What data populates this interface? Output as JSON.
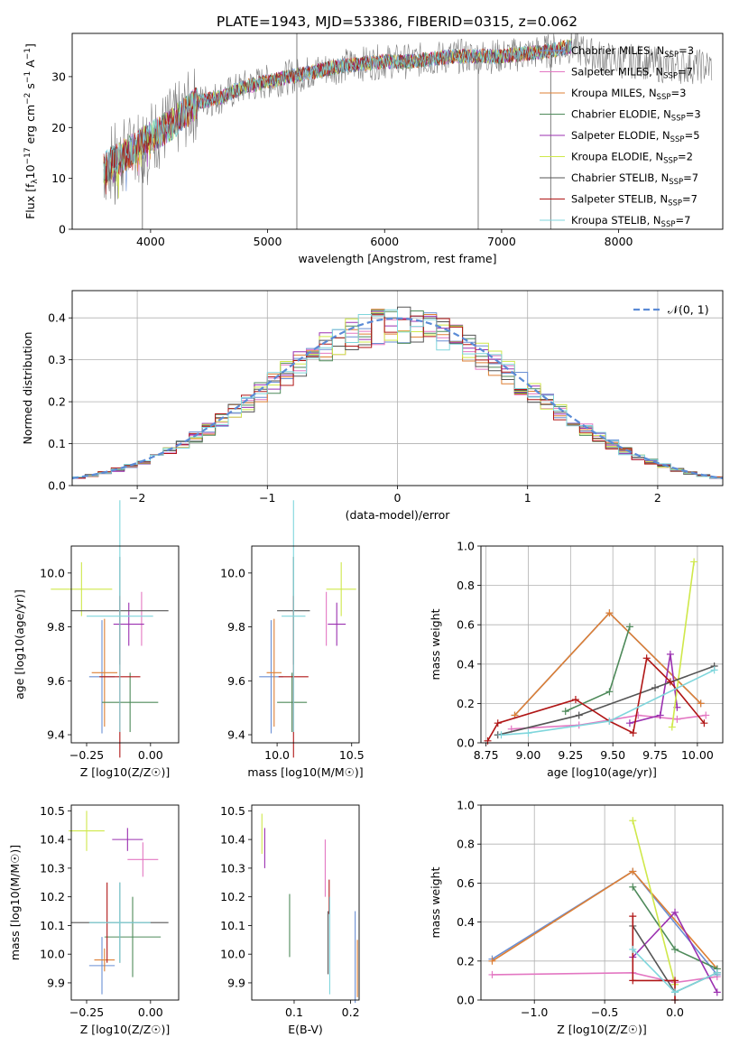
{
  "figure_title": "PLATE=1943, MJD=53386, FIBERID=0315, z=0.062",
  "colors": {
    "Chabrier MILES": "#6a8fd4",
    "Salpeter MILES": "#e377c2",
    "Kroupa MILES": "#dd7f34",
    "Chabrier ELODIE": "#4e8a5a",
    "Salpeter ELODIE": "#9b30b0",
    "Kroupa ELODIE": "#cfe84a",
    "Chabrier STELIB": "#555555",
    "Salpeter STELIB": "#b01616",
    "Kroupa STELIB": "#7fd6dc",
    "gauss": "#5b8bd6",
    "data": "#7f7f7f"
  },
  "chart_data": [
    {
      "id": "spectrum",
      "type": "line",
      "title": "PLATE=1943, MJD=53386, FIBERID=0315, z=0.062",
      "xlabel": "wavelength [Angstrom, rest frame]",
      "ylabel_parts": [
        "Flux [f",
        "λ",
        "10",
        "−17",
        " erg cm",
        "−2",
        " s",
        "−1",
        " A",
        "−1",
        "]"
      ],
      "xlim": [
        3330,
        8890
      ],
      "ylim": [
        0,
        38.5
      ],
      "xticks": [
        4000,
        5000,
        6000,
        7000,
        8000
      ],
      "yticks": [
        0,
        10,
        20,
        30
      ],
      "legend_position": "upper-right",
      "legend": [
        {
          "name": "Chabrier MILES",
          "nssp": "3"
        },
        {
          "name": "Salpeter MILES",
          "nssp": "7"
        },
        {
          "name": "Kroupa MILES",
          "nssp": "3"
        },
        {
          "name": "Chabrier ELODIE",
          "nssp": "3"
        },
        {
          "name": "Salpeter ELODIE",
          "nssp": "5"
        },
        {
          "name": "Kroupa ELODIE",
          "nssp": "2"
        },
        {
          "name": "Chabrier STELIB",
          "nssp": "7"
        },
        {
          "name": "Salpeter STELIB",
          "nssp": "7"
        },
        {
          "name": "Kroupa STELIB",
          "nssp": "7"
        }
      ],
      "continuum": {
        "x": [
          3600,
          3800,
          4000,
          4200,
          4400,
          4600,
          4800,
          5000,
          5200,
          5400,
          5600,
          5800,
          6000,
          6200,
          6400,
          6600,
          6800,
          7000,
          7200,
          7400,
          7600,
          7800,
          8000,
          8200,
          8400,
          8600,
          8800
        ],
        "y": [
          12,
          15,
          18,
          21,
          25,
          26,
          28,
          29,
          30,
          31,
          32,
          32.5,
          33,
          33,
          33.5,
          34,
          34,
          34,
          34.5,
          35,
          36,
          34,
          33,
          33,
          32,
          32,
          32
        ]
      },
      "spikes": [
        {
          "x": 5250,
          "y_low": 0,
          "y_high": 38.5
        },
        {
          "x": 6800,
          "y_low": 0,
          "y_high": 34
        },
        {
          "x": 7420,
          "y_low": 0,
          "y_high": 35
        },
        {
          "x": 3930,
          "y_low": 0,
          "y_high": 12
        }
      ]
    },
    {
      "id": "residuals",
      "type": "line",
      "xlabel": "(data-model)/error",
      "ylabel": "Normed distribution",
      "xlim": [
        -2.5,
        2.5
      ],
      "ylim": [
        0,
        0.465
      ],
      "xticks": [
        -2,
        -1,
        0,
        1,
        2
      ],
      "yticks": [
        0.0,
        0.1,
        0.2,
        0.3,
        0.4
      ],
      "grid": true,
      "legend_position": "upper-right",
      "legend": [
        {
          "name": "𝒩(0, 1)"
        }
      ],
      "bin_width": 0.1
    },
    {
      "id": "age-vs-z",
      "type": "scatter",
      "xlabel": "Z [log10(Z/Z☉)]",
      "ylabel": "age  [log10(age/yr)]",
      "xlim": [
        -0.31,
        0.11
      ],
      "ylim": [
        9.37,
        10.1
      ],
      "xticks": [
        -0.25,
        0.0
      ],
      "yticks": [
        9.4,
        9.6,
        9.8,
        10.0
      ],
      "points": [
        {
          "series": "Chabrier MILES",
          "x": -0.19,
          "y": 9.615,
          "xerr": 0.05,
          "yerr": 0.21
        },
        {
          "series": "Salpeter MILES",
          "x": -0.035,
          "y": 9.83,
          "xerr": 0.0,
          "yerr": 0.1
        },
        {
          "series": "Kroupa MILES",
          "x": -0.18,
          "y": 9.63,
          "xerr": 0.05,
          "yerr": 0.2
        },
        {
          "series": "Chabrier ELODIE",
          "x": -0.08,
          "y": 9.52,
          "xerr": 0.11,
          "yerr": 0.11
        },
        {
          "series": "Salpeter ELODIE",
          "x": -0.085,
          "y": 9.81,
          "xerr": 0.06,
          "yerr": 0.08
        },
        {
          "series": "Kroupa ELODIE",
          "x": -0.27,
          "y": 9.94,
          "xerr": 0.12,
          "yerr": 0.1
        },
        {
          "series": "Chabrier STELIB",
          "x": -0.12,
          "y": 9.86,
          "xerr": 0.19,
          "yerr": 0.2
        },
        {
          "series": "Salpeter STELIB",
          "x": -0.12,
          "y": 9.615,
          "xerr": 0.08,
          "yerr": 0.3
        },
        {
          "series": "Kroupa STELIB",
          "x": -0.12,
          "y": 9.84,
          "xerr": 0.13,
          "yerr": 0.43
        }
      ]
    },
    {
      "id": "age-vs-mass",
      "type": "scatter",
      "xlabel": "mass [log10(M/M☉)]",
      "xlim": [
        9.83,
        10.55
      ],
      "ylim": [
        9.37,
        10.1
      ],
      "xticks": [
        10.0,
        10.5
      ],
      "yticks": [
        9.4,
        9.6,
        9.8,
        10.0
      ],
      "points": [
        {
          "series": "Chabrier MILES",
          "x": 9.96,
          "y": 9.615,
          "xerr": 0.08,
          "yerr": 0.21
        },
        {
          "series": "Salpeter MILES",
          "x": 10.33,
          "y": 9.83,
          "xerr": 0.0,
          "yerr": 0.1
        },
        {
          "series": "Kroupa MILES",
          "x": 9.98,
          "y": 9.63,
          "xerr": 0.05,
          "yerr": 0.2
        },
        {
          "series": "Chabrier ELODIE",
          "x": 10.1,
          "y": 9.52,
          "xerr": 0.1,
          "yerr": 0.11
        },
        {
          "series": "Salpeter ELODIE",
          "x": 10.4,
          "y": 9.81,
          "xerr": 0.06,
          "yerr": 0.08
        },
        {
          "series": "Kroupa ELODIE",
          "x": 10.43,
          "y": 9.94,
          "xerr": 0.1,
          "yerr": 0.1
        },
        {
          "series": "Chabrier STELIB",
          "x": 10.11,
          "y": 9.86,
          "xerr": 0.11,
          "yerr": 0.2
        },
        {
          "series": "Salpeter STELIB",
          "x": 10.11,
          "y": 9.615,
          "xerr": 0.1,
          "yerr": 0.3
        },
        {
          "series": "Kroupa STELIB",
          "x": 10.11,
          "y": 9.84,
          "xerr": 0.08,
          "yerr": 0.43
        }
      ]
    },
    {
      "id": "mass-weight-vs-age",
      "type": "line",
      "xlabel": "age  [log10(age/yr)]",
      "ylabel": "mass weight",
      "xlim": [
        8.72,
        10.15
      ],
      "ylim": [
        0,
        1.0
      ],
      "xticks": [
        8.75,
        9.0,
        9.25,
        9.5,
        9.75,
        10.0
      ],
      "xticklabels": [
        "8.75",
        "9.00",
        "9.25",
        "9.50",
        "9.75",
        "10.00"
      ],
      "yticks": [
        0.0,
        0.2,
        0.4,
        0.6,
        0.8,
        1.0
      ],
      "grid": true,
      "series": [
        {
          "name": "Chabrier MILES",
          "x": [
            8.92,
            9.48,
            10.02
          ],
          "y": [
            0.14,
            0.66,
            0.2
          ]
        },
        {
          "name": "Salpeter MILES",
          "x": [
            8.9,
            9.3,
            9.65,
            9.88,
            10.05
          ],
          "y": [
            0.07,
            0.09,
            0.14,
            0.12,
            0.14
          ]
        },
        {
          "name": "Kroupa MILES",
          "x": [
            8.92,
            9.48,
            10.02
          ],
          "y": [
            0.14,
            0.66,
            0.2
          ]
        },
        {
          "name": "Chabrier ELODIE",
          "x": [
            9.22,
            9.48,
            9.6
          ],
          "y": [
            0.16,
            0.26,
            0.59
          ]
        },
        {
          "name": "Salpeter ELODIE",
          "x": [
            9.6,
            9.78,
            9.84,
            9.88
          ],
          "y": [
            0.1,
            0.14,
            0.45,
            0.18
          ]
        },
        {
          "name": "Kroupa ELODIE",
          "x": [
            9.85,
            9.98
          ],
          "y": [
            0.08,
            0.92
          ]
        },
        {
          "name": "Chabrier STELIB",
          "x": [
            8.82,
            9.3,
            9.75,
            10.1
          ],
          "y": [
            0.04,
            0.14,
            0.28,
            0.39
          ]
        },
        {
          "name": "Salpeter STELIB",
          "x": [
            8.76,
            8.82,
            9.28,
            9.48,
            9.62,
            9.7,
            9.84,
            10.04
          ],
          "y": [
            0.01,
            0.1,
            0.22,
            0.11,
            0.05,
            0.43,
            0.31,
            0.1
          ]
        },
        {
          "name": "Kroupa STELIB",
          "x": [
            8.84,
            9.0,
            9.48,
            10.1
          ],
          "y": [
            0.04,
            0.05,
            0.11,
            0.37
          ]
        }
      ]
    },
    {
      "id": "mass-vs-z",
      "type": "scatter",
      "xlabel": "Z [log10(Z/Z☉)]",
      "ylabel": "mass [log10(M/M☉)]",
      "xlim": [
        -0.31,
        0.11
      ],
      "ylim": [
        9.84,
        10.52
      ],
      "xticks": [
        -0.25,
        0.0
      ],
      "yticks": [
        9.9,
        10.0,
        10.1,
        10.2,
        10.3,
        10.4,
        10.5
      ],
      "points": [
        {
          "series": "Chabrier MILES",
          "x": -0.19,
          "y": 9.96,
          "xerr": 0.05,
          "yerr": 0.1
        },
        {
          "series": "Salpeter MILES",
          "x": -0.03,
          "y": 10.33,
          "xerr": 0.06,
          "yerr": 0.06
        },
        {
          "series": "Kroupa MILES",
          "x": -0.18,
          "y": 9.98,
          "xerr": 0.04,
          "yerr": 0.04
        },
        {
          "series": "Chabrier ELODIE",
          "x": -0.07,
          "y": 10.06,
          "xerr": 0.11,
          "yerr": 0.14
        },
        {
          "series": "Salpeter ELODIE",
          "x": -0.09,
          "y": 10.4,
          "xerr": 0.06,
          "yerr": 0.04
        },
        {
          "series": "Kroupa ELODIE",
          "x": -0.25,
          "y": 10.43,
          "xerr": 0.07,
          "yerr": 0.07
        },
        {
          "series": "Chabrier STELIB",
          "x": -0.12,
          "y": 10.11,
          "xerr": 0.19,
          "yerr": 0.14
        },
        {
          "series": "Salpeter STELIB",
          "x": -0.17,
          "y": 10.11,
          "xerr": 0.0,
          "yerr": 0.14
        },
        {
          "series": "Kroupa STELIB",
          "x": -0.12,
          "y": 10.11,
          "xerr": 0.12,
          "yerr": 0.14
        }
      ]
    },
    {
      "id": "mass-vs-ebv",
      "type": "scatter",
      "xlabel": "E(B-V)",
      "xlim": [
        0.025,
        0.215
      ],
      "ylim": [
        9.84,
        10.52
      ],
      "xticks": [
        0.1,
        0.2
      ],
      "yticks": [
        9.9,
        10.0,
        10.1,
        10.2,
        10.3,
        10.4,
        10.5
      ],
      "points": [
        {
          "series": "Chabrier MILES",
          "x": 0.208,
          "y": 9.99,
          "yerr": 0.16
        },
        {
          "series": "Salpeter MILES",
          "x": 0.155,
          "y": 10.3,
          "yerr": 0.1
        },
        {
          "series": "Kroupa MILES",
          "x": 0.212,
          "y": 9.95,
          "yerr": 0.1
        },
        {
          "series": "Chabrier ELODIE",
          "x": 0.092,
          "y": 10.1,
          "yerr": 0.11
        },
        {
          "series": "Salpeter ELODIE",
          "x": 0.048,
          "y": 10.37,
          "yerr": 0.07
        },
        {
          "series": "Kroupa ELODIE",
          "x": 0.043,
          "y": 10.42,
          "yerr": 0.07
        },
        {
          "series": "Chabrier STELIB",
          "x": 0.16,
          "y": 10.04,
          "yerr": 0.11
        },
        {
          "series": "Salpeter STELIB",
          "x": 0.162,
          "y": 10.2,
          "yerr": 0.06
        },
        {
          "series": "Kroupa STELIB",
          "x": 0.163,
          "y": 10.03,
          "yerr": 0.17
        }
      ]
    },
    {
      "id": "mass-weight-vs-z",
      "type": "line",
      "xlabel": "Z [log10(Z/Z☉)]",
      "ylabel": "mass weight",
      "xlim": [
        -1.38,
        0.34
      ],
      "ylim": [
        0,
        1.0
      ],
      "xticks": [
        -1.0,
        -0.5,
        0.0
      ],
      "xticklabels": [
        "−1.0",
        "−0.5",
        "0.0"
      ],
      "yticks": [
        0.0,
        0.2,
        0.4,
        0.6,
        0.8,
        1.0
      ],
      "grid": true,
      "series": [
        {
          "name": "Chabrier MILES",
          "x": [
            -1.3,
            -0.3,
            0.3
          ],
          "y": [
            0.21,
            0.66,
            0.13
          ]
        },
        {
          "name": "Salpeter MILES",
          "x": [
            -1.3,
            -0.3,
            0.0,
            0.3
          ],
          "y": [
            0.13,
            0.14,
            0.09,
            0.12
          ]
        },
        {
          "name": "Kroupa MILES",
          "x": [
            -1.3,
            -0.3,
            0.3
          ],
          "y": [
            0.2,
            0.66,
            0.16
          ]
        },
        {
          "name": "Chabrier ELODIE",
          "x": [
            -0.3,
            0.0,
            0.3
          ],
          "y": [
            0.58,
            0.26,
            0.16
          ]
        },
        {
          "name": "Salpeter ELODIE",
          "x": [
            -0.3,
            0.0,
            0.3
          ],
          "y": [
            0.22,
            0.45,
            0.04
          ]
        },
        {
          "name": "Kroupa ELODIE",
          "x": [
            -0.3,
            0.0
          ],
          "y": [
            0.92,
            0.08
          ]
        },
        {
          "name": "Chabrier STELIB",
          "x": [
            -0.3,
            0.0,
            0.3
          ],
          "y": [
            0.38,
            0.04,
            0.14
          ]
        },
        {
          "name": "Salpeter STELIB",
          "x": [
            -0.3,
            -0.3,
            0.0,
            0.0
          ],
          "y": [
            0.43,
            0.1,
            0.1,
            0.0
          ]
        },
        {
          "name": "Kroupa STELIB",
          "x": [
            -0.3,
            0.0,
            0.3
          ],
          "y": [
            0.26,
            0.04,
            0.14
          ]
        }
      ]
    }
  ]
}
